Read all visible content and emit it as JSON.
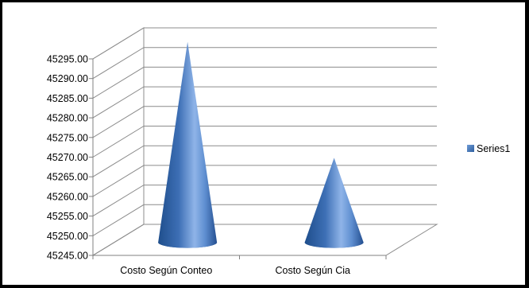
{
  "chart_data": {
    "type": "bar",
    "style": "3d-cone",
    "categories": [
      "Costo Según Conteo",
      "Costo Según Cia"
    ],
    "series": [
      {
        "name": "Series1",
        "values": [
          45296.0,
          45266.5
        ],
        "color": "#4F81BD"
      }
    ],
    "ylim": [
      45245.0,
      45295.0
    ],
    "yticks": [
      "45245.00",
      "45250.00",
      "45255.00",
      "45260.00",
      "45265.00",
      "45270.00",
      "45275.00",
      "45280.00",
      "45285.00",
      "45290.00",
      "45295.00"
    ],
    "grid": true,
    "legend": "right"
  },
  "legend": {
    "label": "Series1"
  }
}
